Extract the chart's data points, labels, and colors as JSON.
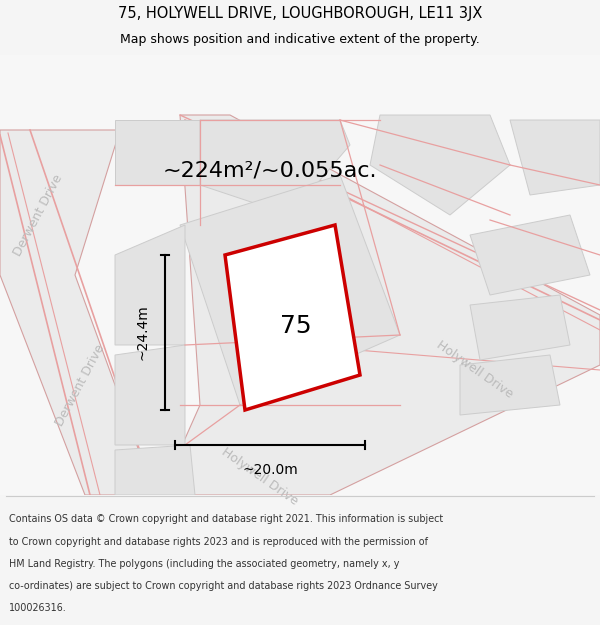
{
  "title": "75, HOLYWELL DRIVE, LOUGHBOROUGH, LE11 3JX",
  "subtitle": "Map shows position and indicative extent of the property.",
  "footer_lines": [
    "Contains OS data © Crown copyright and database right 2021. This information is subject",
    "to Crown copyright and database rights 2023 and is reproduced with the permission of",
    "HM Land Registry. The polygons (including the associated geometry, namely x, y",
    "co-ordinates) are subject to Crown copyright and database rights 2023 Ordnance Survey",
    "100026316."
  ],
  "area_label": "~224m²/~0.055ac.",
  "width_label": "~20.0m",
  "height_label": "~24.4m",
  "plot_number": "75",
  "bg_color": "#f5f5f5",
  "map_bg": "#f8f8f8",
  "plot_stroke": "#cc0000",
  "plot_fill": "#ffffff",
  "pink": "#e8a0a0",
  "building_fill": "#e3e3e3",
  "building_edge": "#cccccc",
  "road_fill": "#ebebeb",
  "road_edge": "#d4a0a0",
  "street_label_color": "#bbbbbb",
  "dim_color": "#000000",
  "title_color": "#000000",
  "footer_color": "#333333"
}
